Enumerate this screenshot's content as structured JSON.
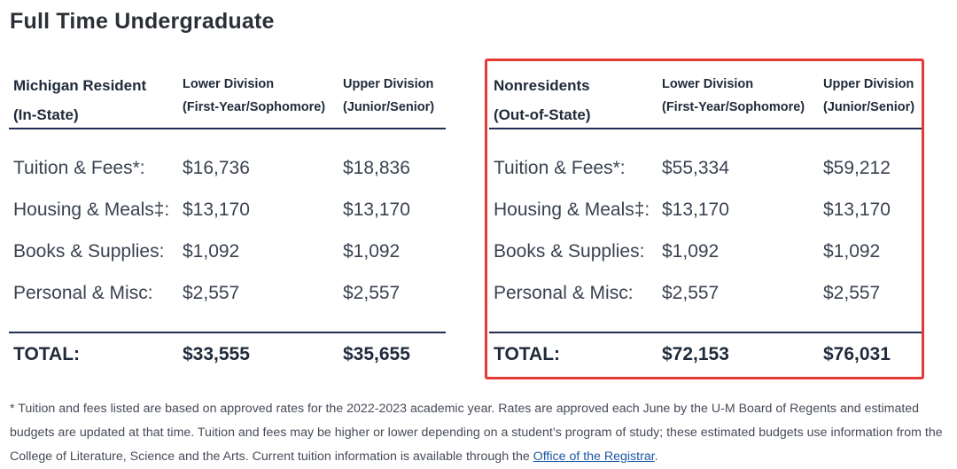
{
  "title": "Full Time Undergraduate",
  "columns": {
    "lower_division": "Lower Division",
    "lower_division_sub": "(First-Year/Sophomore)",
    "upper_division": "Upper Division",
    "upper_division_sub": "(Junior/Senior)"
  },
  "instate": {
    "title_line1": "Michigan Resident",
    "title_line2": "(In-State)",
    "rows": [
      {
        "label": "Tuition & Fees*:",
        "lower": "$16,736",
        "upper": "$18,836"
      },
      {
        "label": "Housing & Meals‡:",
        "lower": "$13,170",
        "upper": "$13,170"
      },
      {
        "label": "Books & Supplies:",
        "lower": "$1,092",
        "upper": "$1,092"
      },
      {
        "label": "Personal & Misc:",
        "lower": "$2,557",
        "upper": "$2,557"
      }
    ],
    "total": {
      "label": "TOTAL:",
      "lower": "$33,555",
      "upper": "$35,655"
    }
  },
  "outstate": {
    "title_line1": "Nonresidents",
    "title_line2": "(Out-of-State)",
    "rows": [
      {
        "label": "Tuition & Fees*:",
        "lower": "$55,334",
        "upper": "$59,212"
      },
      {
        "label": "Housing & Meals‡:",
        "lower": "$13,170",
        "upper": "$13,170"
      },
      {
        "label": "Books & Supplies:",
        "lower": "$1,092",
        "upper": "$1,092"
      },
      {
        "label": "Personal & Misc:",
        "lower": "$2,557",
        "upper": "$2,557"
      }
    ],
    "total": {
      "label": "TOTAL:",
      "lower": "$72,153",
      "upper": "$76,031"
    }
  },
  "highlight_color": "#e53935",
  "rule_color": "#1f2d52",
  "footnote": {
    "text": "* Tuition and fees listed are based on approved rates for the 2022-2023 academic year. Rates are approved each June by the U-M Board of Regents and estimated budgets are updated at that time. Tuition and fees may be higher or lower depending on a student’s program of study; these estimated budgets use information from the College of Literature, Science and the Arts. Current tuition information is available through the ",
    "link_text": "Office of the Registrar",
    "end": "."
  }
}
